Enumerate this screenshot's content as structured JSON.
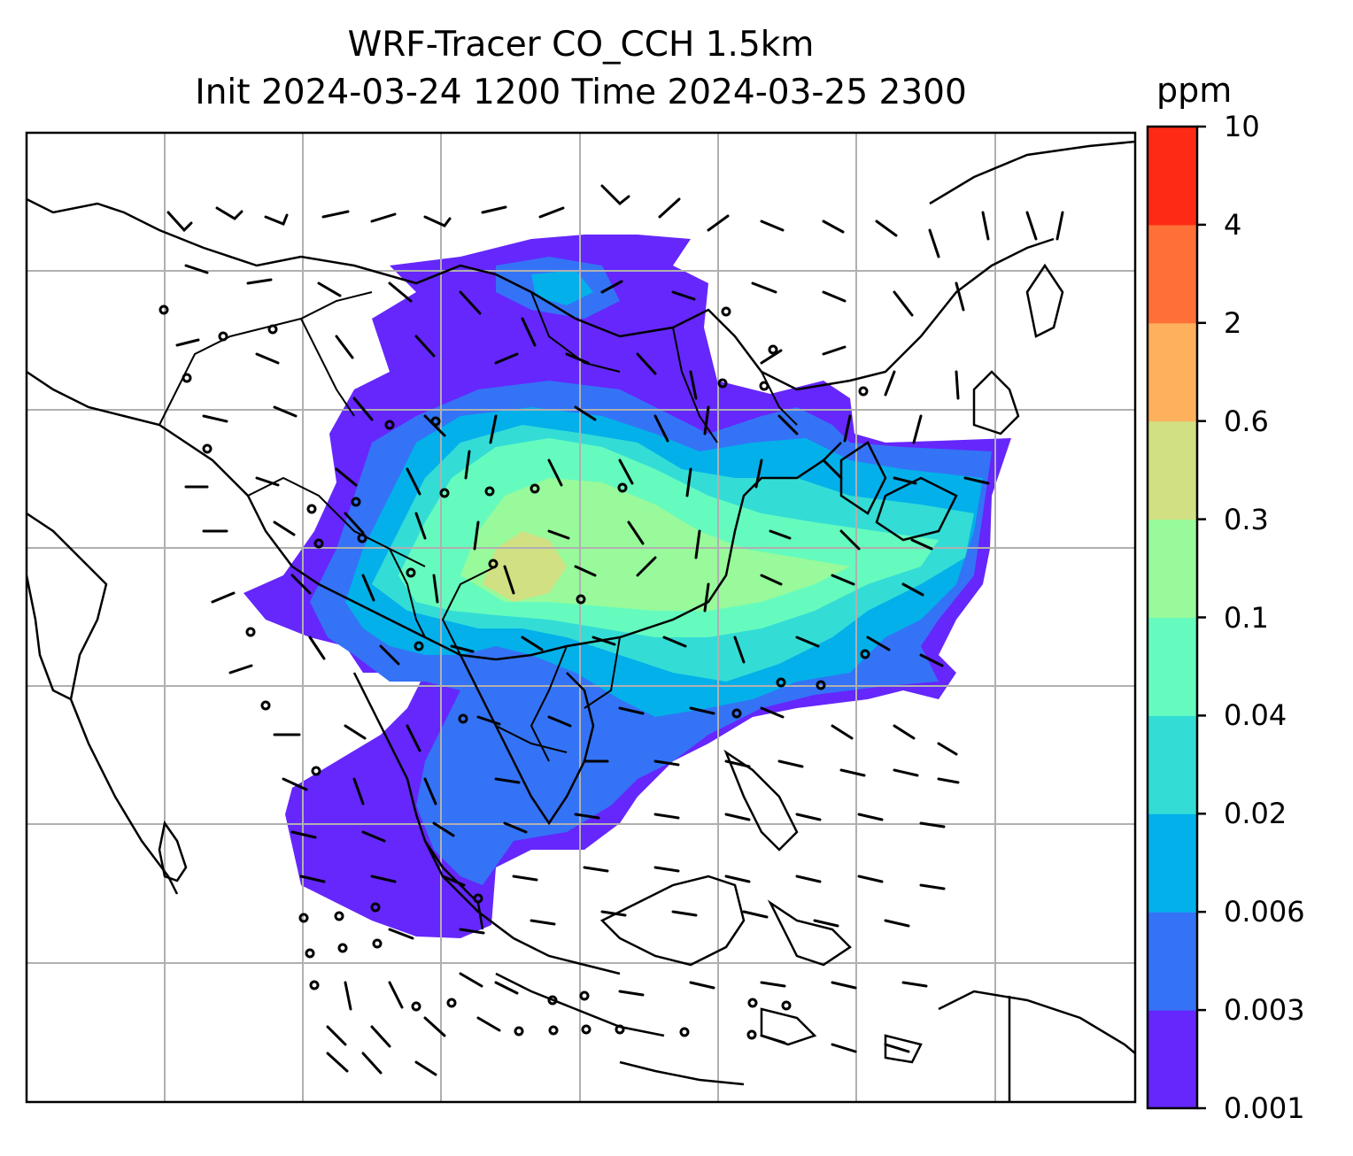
{
  "map": {
    "title_line1": "WRF-Tracer CO_CCH 1.5km",
    "title_line2": "Init 2024-03-24 1200 Time 2024-03-25 2300",
    "colorbar": {
      "units": "ppm",
      "levels": [
        "0.001",
        "0.003",
        "0.006",
        "0.02",
        "0.04",
        "0.1",
        "0.3",
        "0.6",
        "2",
        "4",
        "10"
      ],
      "colors": [
        "#6527fb",
        "#3473f6",
        "#03b0ea",
        "#33ddd6",
        "#66fbbe",
        "#98fa9b",
        "#d0e083",
        "#ffb05d",
        "#ff7038",
        "#ff2a15"
      ]
    },
    "features": [
      "coastlines",
      "country-borders",
      "lat-lon-gridlines",
      "wind-barbs",
      "calm-wind-circles",
      "co-tracer-shading"
    ]
  }
}
